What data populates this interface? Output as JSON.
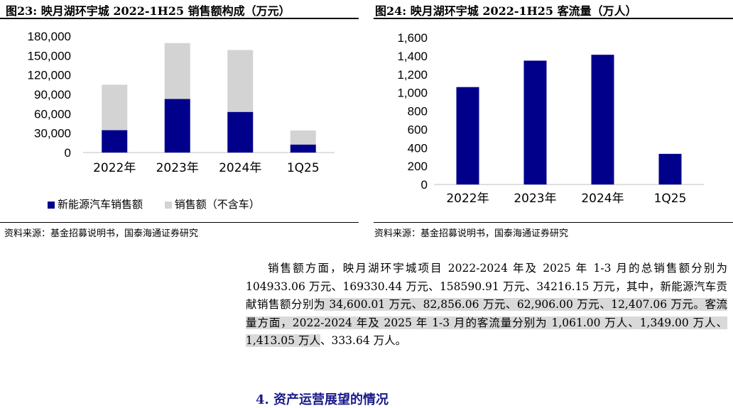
{
  "figures": [
    {
      "title": "图23:  映月湖环宇城 2022-1H25 销售额构成（万元）",
      "source": "资料来源：基金招募说明书，国泰海通证券研究"
    },
    {
      "title": "图24:  映月湖环宇城 2022-1H25 客流量（万人）",
      "source": "资料来源：基金招募说明书，国泰海通证券研究"
    }
  ],
  "chart_data": [
    {
      "type": "bar",
      "stacked": true,
      "categories": [
        "2022年",
        "2023年",
        "2024年",
        "1Q25"
      ],
      "series": [
        {
          "name": "新能源汽车销售额",
          "color": "#00008B",
          "values": [
            34600.01,
            82856.06,
            62906.0,
            12407.06
          ]
        },
        {
          "name": "销售额（不含车）",
          "color": "#D3D3D3",
          "values": [
            70333.05,
            86474.38,
            95684.91,
            21809.09
          ]
        }
      ],
      "ylim": [
        0,
        180000
      ],
      "yticks": [
        "0",
        "30,000",
        "60,000",
        "90,000",
        "120,000",
        "150,000",
        "180,000"
      ],
      "legend": "bottom",
      "grid": false
    },
    {
      "type": "bar",
      "categories": [
        "2022年",
        "2023年",
        "2024年",
        "1Q25"
      ],
      "series": [
        {
          "color": "#00008B",
          "values": [
            1061.0,
            1349.0,
            1413.05,
            333.64
          ]
        }
      ],
      "ylim": [
        0,
        1600
      ],
      "yticks": [
        "0",
        "200",
        "400",
        "600",
        "800",
        "1,000",
        "1,200",
        "1,400",
        "1,600"
      ],
      "grid": false
    }
  ],
  "paragraph": {
    "part1": "销售额方面，映月湖环宇城项目 2022-2024 年及 2025 年 1-3 月的总销售额分别为 104933.06 万元、169330.44 万元、158590.91 万元、34216.15 万元，其中，新能源汽车贡献销售额分别",
    "part2": "为 34,600.01 万元、82,856.06 万元、62,906.00 万元、12,407.06 万元。客流量方面，2022-2024 年及 2025 年 1-3 月的客流量分别为 1,061.00 万人、1,349.00 万人、1,413.05 万人",
    "part3": "、333.64 万人。"
  },
  "section_heading": "4.  资产运营展望的情况"
}
